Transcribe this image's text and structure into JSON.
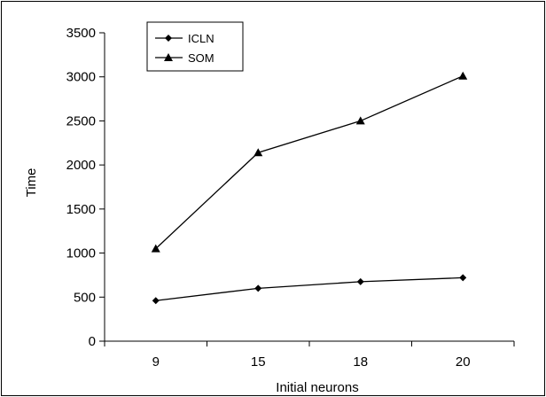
{
  "chart_data": {
    "type": "line",
    "title": "",
    "xlabel": "Initial neurons",
    "ylabel": "Time",
    "categories": [
      "9",
      "15",
      "18",
      "20"
    ],
    "ylim": [
      0,
      3500
    ],
    "yticks": [
      0,
      500,
      1000,
      1500,
      2000,
      2500,
      3000,
      3500
    ],
    "grid": false,
    "legend_position": "top-left",
    "series": [
      {
        "name": "ICLN",
        "marker": "diamond",
        "color": "#000000",
        "values": [
          460,
          600,
          675,
          720
        ]
      },
      {
        "name": "SOM",
        "marker": "triangle",
        "color": "#000000",
        "values": [
          1050,
          2140,
          2500,
          3010
        ]
      }
    ]
  }
}
